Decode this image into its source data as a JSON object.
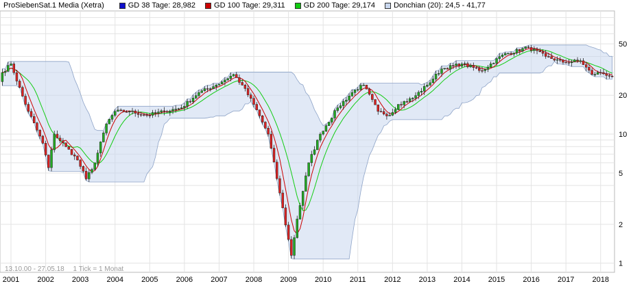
{
  "chart_data": {
    "type": "candlestick",
    "title": "ProSiebenSat.1 Media (Xetra)",
    "legend_position": "top",
    "y_scale": "log",
    "ylim": [
      0.85,
      90
    ],
    "y_ticks": [
      1,
      2,
      5,
      10,
      20,
      50
    ],
    "x_range": [
      "2000-10",
      "2018-05"
    ],
    "x_ticks": [
      "2001",
      "2002",
      "2003",
      "2004",
      "2005",
      "2006",
      "2007",
      "2008",
      "2009",
      "2010",
      "2011",
      "2012",
      "2013",
      "2014",
      "2015",
      "2016",
      "2017",
      "2018"
    ],
    "grid": true,
    "legend": [
      {
        "name": "GD 38 Tage: 28,982",
        "color": "#1010cc"
      },
      {
        "name": "GD 100 Tage: 29,311",
        "color": "#cc0000"
      },
      {
        "name": "GD 200 Tage: 29,174",
        "color": "#11cc11"
      },
      {
        "name": "Donchian (20): 24,5 - 41,77",
        "color": "#c9d7ee"
      }
    ],
    "footer": {
      "date_range": "13.10.00 - 27.05.18",
      "tick_info": "1 Tick = 1 Monat"
    },
    "series": [
      {
        "name": "ProSiebenSat.1 Media (Xetra)",
        "colors": {
          "up": "#22aa22",
          "down": "#dd2222"
        },
        "close_anchors": [
          [
            "2000-10",
            30
          ],
          [
            "2001-01",
            35
          ],
          [
            "2001-06",
            17
          ],
          [
            "2001-12",
            8.5
          ],
          [
            "2002-02",
            5.5
          ],
          [
            "2002-04",
            10
          ],
          [
            "2002-08",
            8
          ],
          [
            "2002-12",
            6.3
          ],
          [
            "2003-03",
            4.5
          ],
          [
            "2003-06",
            6
          ],
          [
            "2003-10",
            12
          ],
          [
            "2004-01",
            15
          ],
          [
            "2004-06",
            15
          ],
          [
            "2004-12",
            14
          ],
          [
            "2005-06",
            15
          ],
          [
            "2005-12",
            16
          ],
          [
            "2006-06",
            21
          ],
          [
            "2006-12",
            24
          ],
          [
            "2007-06",
            29
          ],
          [
            "2007-09",
            24
          ],
          [
            "2008-01",
            17
          ],
          [
            "2008-06",
            10
          ],
          [
            "2008-10",
            3.5
          ],
          [
            "2009-02",
            1.15
          ],
          [
            "2009-04",
            2.2
          ],
          [
            "2009-08",
            6
          ],
          [
            "2009-12",
            10
          ],
          [
            "2010-06",
            16
          ],
          [
            "2010-12",
            22
          ],
          [
            "2011-03",
            24
          ],
          [
            "2011-08",
            15
          ],
          [
            "2011-12",
            14
          ],
          [
            "2012-03",
            17
          ],
          [
            "2012-08",
            19
          ],
          [
            "2013-01",
            24
          ],
          [
            "2013-06",
            32
          ],
          [
            "2014-01",
            35
          ],
          [
            "2014-08",
            31
          ],
          [
            "2015-03",
            41
          ],
          [
            "2015-12",
            47
          ],
          [
            "2016-06",
            40
          ],
          [
            "2016-12",
            36
          ],
          [
            "2017-06",
            37
          ],
          [
            "2017-10",
            29
          ],
          [
            "2018-01",
            30
          ],
          [
            "2018-05",
            28
          ]
        ]
      }
    ]
  }
}
